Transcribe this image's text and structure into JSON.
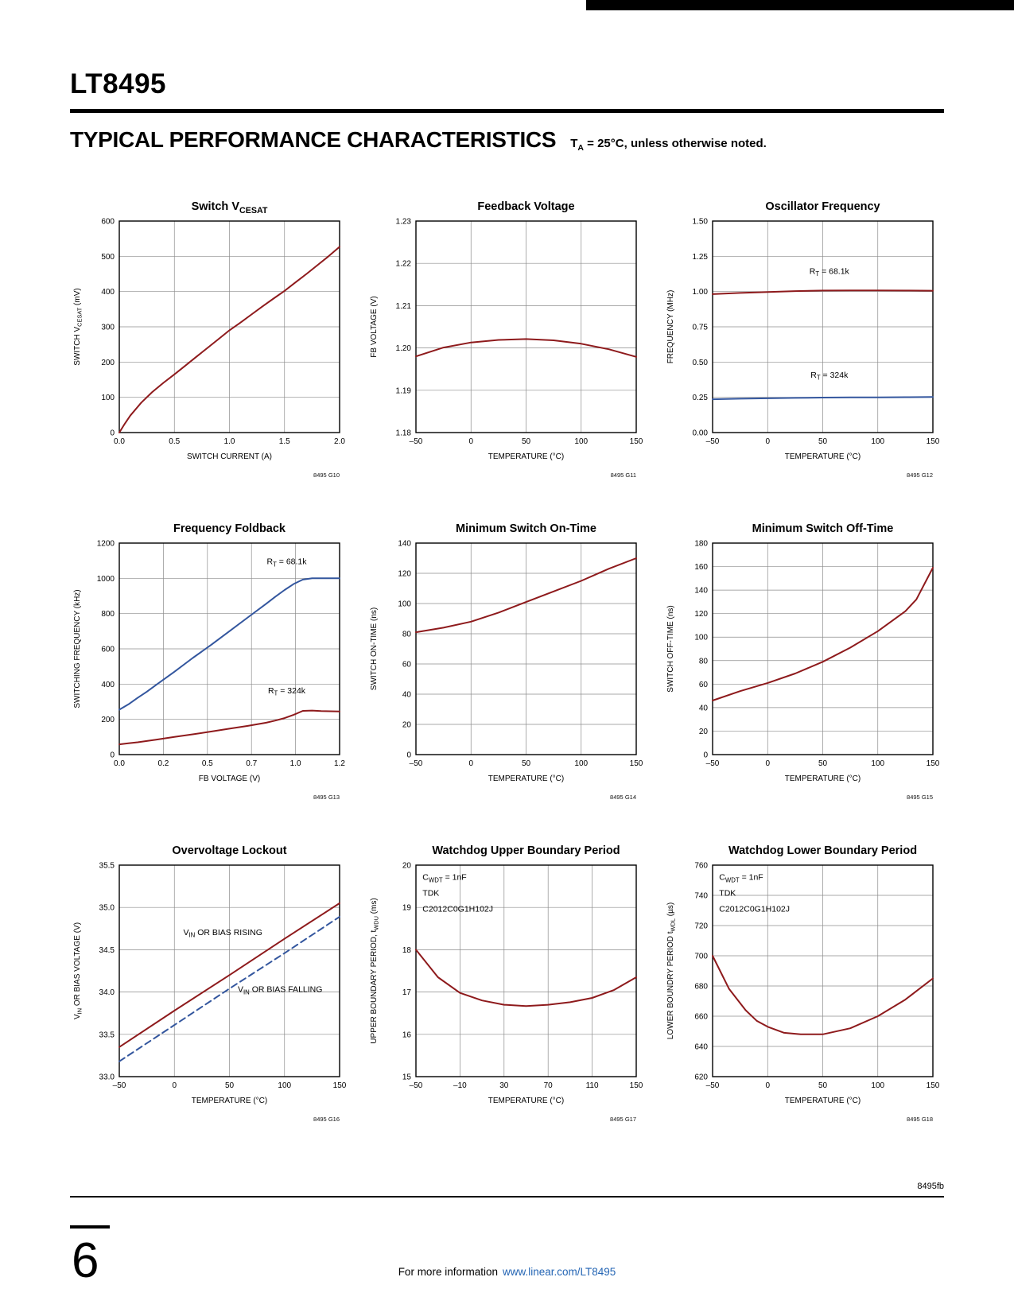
{
  "page": {
    "part_number": "LT8495",
    "section_title": "TYPICAL PERFORMANCE CHARACTERISTICS",
    "section_note": "T_{A} = 25°C, unless otherwise noted.",
    "doc_code": "8495fb",
    "page_number": "6",
    "footer_prefix": "For more information",
    "footer_link": "www.linear.com/LT8495"
  },
  "colors": {
    "red": "#8E1A1C",
    "blue": "#33569E",
    "grid": "#8C8C8C",
    "frame": "#000000",
    "link": "#2465B4"
  },
  "chart_data": [
    {
      "type": "line",
      "title": "Switch V_{CESAT}",
      "xlabel": "SWITCH CURRENT (A)",
      "ylabel": "SWITCH V_{CESAT} (mV)",
      "xlim": [
        0,
        2
      ],
      "ylim": [
        0,
        600
      ],
      "xticks": {
        "values": [
          0,
          0.5,
          1,
          1.5,
          2
        ],
        "labels": [
          "0.0",
          "0.5",
          "1.0",
          "1.5",
          "2.0"
        ]
      },
      "yticks": {
        "values": [
          0,
          100,
          200,
          300,
          400,
          500,
          600
        ],
        "labels": [
          "0",
          "100",
          "200",
          "300",
          "400",
          "500",
          "600"
        ]
      },
      "tag": "8495 G10",
      "series": [
        {
          "name": "vcesat",
          "color": "red",
          "style": "solid",
          "x": [
            0,
            0.05,
            0.1,
            0.2,
            0.3,
            0.4,
            0.5,
            0.6,
            0.7,
            0.8,
            0.9,
            1.0,
            1.1,
            1.2,
            1.3,
            1.4,
            1.5,
            1.6,
            1.7,
            1.8,
            1.9,
            2.0
          ],
          "y": [
            0,
            25,
            48,
            85,
            115,
            141,
            165,
            190,
            215,
            240,
            265,
            290,
            312,
            335,
            358,
            380,
            402,
            426,
            450,
            475,
            500,
            527
          ]
        }
      ]
    },
    {
      "type": "line",
      "title": "Feedback Voltage",
      "xlabel": "TEMPERATURE (°C)",
      "ylabel": "FB VOLTAGE (V)",
      "xlim": [
        -50,
        150
      ],
      "ylim": [
        1.18,
        1.23
      ],
      "xticks": {
        "values": [
          -50,
          0,
          50,
          100,
          150
        ],
        "labels": [
          "–50",
          "0",
          "50",
          "100",
          "150"
        ]
      },
      "yticks": {
        "values": [
          1.18,
          1.19,
          1.2,
          1.21,
          1.22,
          1.23
        ],
        "labels": [
          "1.18",
          "1.19",
          "1.20",
          "1.21",
          "1.22",
          "1.23"
        ]
      },
      "tag": "8495 G11",
      "series": [
        {
          "name": "fb-voltage",
          "color": "red",
          "style": "solid",
          "x": [
            -50,
            -25,
            0,
            25,
            50,
            75,
            100,
            125,
            150
          ],
          "y": [
            1.198,
            1.2001,
            1.2013,
            1.2019,
            1.2021,
            1.2018,
            1.201,
            1.1997,
            1.1979
          ]
        }
      ]
    },
    {
      "type": "line",
      "title": "Oscillator Frequency",
      "xlabel": "TEMPERATURE (°C)",
      "ylabel": "FREQUENCY (MHz)",
      "xlim": [
        -50,
        150
      ],
      "ylim": [
        0,
        1.5
      ],
      "xticks": {
        "values": [
          -50,
          0,
          50,
          100,
          150
        ],
        "labels": [
          "–50",
          "0",
          "50",
          "100",
          "150"
        ]
      },
      "yticks": {
        "values": [
          0,
          0.25,
          0.5,
          0.75,
          1,
          1.25,
          1.5
        ],
        "labels": [
          "0.00",
          "0.25",
          "0.50",
          "0.75",
          "1.00",
          "1.25",
          "1.50"
        ]
      },
      "tag": "8495 G12",
      "series": [
        {
          "name": "rt-68k",
          "color": "red",
          "style": "solid",
          "x": [
            -50,
            -25,
            0,
            25,
            50,
            75,
            100,
            125,
            150
          ],
          "y": [
            0.982,
            0.99,
            0.997,
            1.003,
            1.007,
            1.008,
            1.008,
            1.007,
            1.006
          ]
        },
        {
          "name": "rt-324k",
          "color": "blue",
          "style": "solid",
          "x": [
            -50,
            -25,
            0,
            25,
            50,
            75,
            100,
            125,
            150
          ],
          "y": [
            0.236,
            0.24,
            0.243,
            0.246,
            0.248,
            0.249,
            0.25,
            0.251,
            0.252
          ]
        }
      ],
      "annotations": [
        {
          "text": "R_{T} = 68.1k",
          "fx": 0.53,
          "fy": 0.25
        },
        {
          "text": "R_{T} = 324k",
          "fx": 0.53,
          "fy": 0.74
        }
      ]
    },
    {
      "type": "line",
      "title": "Frequency Foldback",
      "xlabel": "FB VOLTAGE (V)",
      "ylabel": "SWITCHING FREQUENCY (kHz)",
      "xlim": [
        0,
        1.2
      ],
      "ylim": [
        0,
        1200
      ],
      "xticks": {
        "values": [
          0,
          0.24,
          0.48,
          0.72,
          0.96,
          1.2
        ],
        "labels": [
          "0.0",
          "0.2",
          "0.5",
          "0.7",
          "1.0",
          "1.2"
        ]
      },
      "yticks": {
        "values": [
          0,
          200,
          400,
          600,
          800,
          1000,
          1200
        ],
        "labels": [
          "0",
          "200",
          "400",
          "600",
          "800",
          "1000",
          "1200"
        ]
      },
      "tag": "8495 G13",
      "series": [
        {
          "name": "rt-68k",
          "color": "blue",
          "style": "solid",
          "x": [
            0,
            0.05,
            0.1,
            0.15,
            0.2,
            0.3,
            0.4,
            0.5,
            0.6,
            0.7,
            0.8,
            0.85,
            0.9,
            0.95,
            1.0,
            1.05,
            1.1,
            1.2
          ],
          "y": [
            255,
            285,
            322,
            357,
            395,
            470,
            548,
            622,
            700,
            778,
            856,
            896,
            934,
            968,
            993,
            1000,
            1000,
            1000
          ]
        },
        {
          "name": "rt-324k",
          "color": "red",
          "style": "solid",
          "x": [
            0,
            0.05,
            0.1,
            0.15,
            0.2,
            0.3,
            0.4,
            0.5,
            0.6,
            0.7,
            0.8,
            0.85,
            0.9,
            0.95,
            1.0,
            1.05,
            1.1,
            1.2
          ],
          "y": [
            58,
            64,
            70,
            77,
            85,
            100,
            115,
            131,
            147,
            163,
            181,
            193,
            207,
            226,
            248,
            250,
            247,
            245
          ]
        }
      ],
      "annotations": [
        {
          "text": "R_{T} = 68.1k",
          "fx": 0.76,
          "fy": 0.1
        },
        {
          "text": "R_{T} = 324k",
          "fx": 0.76,
          "fy": 0.71
        }
      ]
    },
    {
      "type": "line",
      "title": "Minimum Switch On-Time",
      "xlabel": "TEMPERATURE (°C)",
      "ylabel": "SWITCH ON-TIME (ns)",
      "xlim": [
        -50,
        150
      ],
      "ylim": [
        0,
        140
      ],
      "xticks": {
        "values": [
          -50,
          0,
          50,
          100,
          150
        ],
        "labels": [
          "–50",
          "0",
          "50",
          "100",
          "150"
        ]
      },
      "yticks": {
        "values": [
          0,
          20,
          40,
          60,
          80,
          100,
          120,
          140
        ],
        "labels": [
          "0",
          "20",
          "40",
          "60",
          "80",
          "100",
          "120",
          "140"
        ]
      },
      "tag": "8495 G14",
      "series": [
        {
          "name": "on-time",
          "color": "red",
          "style": "solid",
          "x": [
            -50,
            -25,
            0,
            25,
            50,
            75,
            100,
            125,
            150
          ],
          "y": [
            81,
            84,
            88,
            94,
            101,
            108,
            115,
            123,
            130
          ]
        }
      ]
    },
    {
      "type": "line",
      "title": "Minimum Switch Off-Time",
      "xlabel": "TEMPERATURE (°C)",
      "ylabel": "SWITCH OFF-TIME (ns)",
      "xlim": [
        -50,
        150
      ],
      "ylim": [
        0,
        180
      ],
      "xticks": {
        "values": [
          -50,
          0,
          50,
          100,
          150
        ],
        "labels": [
          "–50",
          "0",
          "50",
          "100",
          "150"
        ]
      },
      "yticks": {
        "values": [
          0,
          20,
          40,
          60,
          80,
          100,
          120,
          140,
          160,
          180
        ],
        "labels": [
          "0",
          "20",
          "40",
          "60",
          "80",
          "100",
          "120",
          "140",
          "160",
          "180"
        ]
      },
      "tag": "8495 G15",
      "series": [
        {
          "name": "off-time",
          "color": "red",
          "style": "solid",
          "x": [
            -50,
            -25,
            0,
            25,
            50,
            75,
            100,
            125,
            135,
            150
          ],
          "y": [
            46,
            54,
            61,
            69,
            79,
            91,
            105,
            122,
            132,
            159
          ]
        }
      ]
    },
    {
      "type": "line",
      "title": "Overvoltage Lockout",
      "xlabel": "TEMPERATURE (°C)",
      "ylabel": "V_{IN} OR BIAS VOLTAGE (V)",
      "xlim": [
        -50,
        150
      ],
      "ylim": [
        33,
        35.5
      ],
      "xticks": {
        "values": [
          -50,
          0,
          50,
          100,
          150
        ],
        "labels": [
          "–50",
          "0",
          "50",
          "100",
          "150"
        ]
      },
      "yticks": {
        "values": [
          33,
          33.5,
          34,
          34.5,
          35,
          35.5
        ],
        "labels": [
          "33.0",
          "33.5",
          "34.0",
          "34.5",
          "35.0",
          "35.5"
        ]
      },
      "tag": "8495 G16",
      "series": [
        {
          "name": "rising",
          "color": "red",
          "style": "solid",
          "x": [
            -50,
            0,
            50,
            100,
            150
          ],
          "y": [
            33.35,
            33.78,
            34.2,
            34.63,
            35.05
          ]
        },
        {
          "name": "falling",
          "color": "blue",
          "style": "dashed",
          "x": [
            -50,
            0,
            50,
            100,
            150
          ],
          "y": [
            33.18,
            33.61,
            34.04,
            34.46,
            34.89
          ]
        }
      ],
      "annotations": [
        {
          "text": "V_{IN} OR BIAS RISING",
          "fx": 0.47,
          "fy": 0.33
        },
        {
          "text": "V_{IN} OR BIAS FALLING",
          "fx": 0.73,
          "fy": 0.6
        }
      ]
    },
    {
      "type": "line",
      "title": "Watchdog Upper Boundary Period",
      "xlabel": "TEMPERATURE (°C)",
      "ylabel": "UPPER BOUNDARY PERIOD, t_{WDU} (ms)",
      "xlim": [
        -50,
        150
      ],
      "ylim": [
        15,
        20
      ],
      "xticks": {
        "values": [
          -50,
          -10,
          30,
          70,
          110,
          150
        ],
        "labels": [
          "–50",
          "–10",
          "30",
          "70",
          "110",
          "150"
        ]
      },
      "yticks": {
        "values": [
          15,
          16,
          17,
          18,
          19,
          20
        ],
        "labels": [
          "15",
          "16",
          "17",
          "18",
          "19",
          "20"
        ]
      },
      "tag": "8495 G17",
      "series": [
        {
          "name": "twdu",
          "color": "red",
          "style": "solid",
          "x": [
            -50,
            -30,
            -10,
            10,
            30,
            50,
            70,
            90,
            110,
            130,
            150
          ],
          "y": [
            18.0,
            17.35,
            16.98,
            16.8,
            16.7,
            16.67,
            16.7,
            16.76,
            16.86,
            17.05,
            17.35
          ]
        }
      ],
      "annotations": [
        {
          "text": "C_{WDT} = 1nF",
          "fx": 0.03,
          "fy": 0.07,
          "anchor": "start"
        },
        {
          "text": "TDK",
          "fx": 0.03,
          "fy": 0.145,
          "anchor": "start"
        },
        {
          "text": "C2012C0G1H102J",
          "fx": 0.03,
          "fy": 0.22,
          "anchor": "start"
        }
      ]
    },
    {
      "type": "line",
      "title": "Watchdog Lower Boundary Period",
      "xlabel": "TEMPERATURE (°C)",
      "ylabel": "LOWER BOUNDRY PERIOD t_{WDL} (µs)",
      "xlim": [
        -50,
        150
      ],
      "ylim": [
        620,
        760
      ],
      "xticks": {
        "values": [
          -50,
          0,
          50,
          100,
          150
        ],
        "labels": [
          "–50",
          "0",
          "50",
          "100",
          "150"
        ]
      },
      "yticks": {
        "values": [
          620,
          640,
          660,
          680,
          700,
          720,
          740,
          760
        ],
        "labels": [
          "620",
          "640",
          "660",
          "680",
          "700",
          "720",
          "740",
          "760"
        ]
      },
      "tag": "8495 G18",
      "series": [
        {
          "name": "twdl",
          "color": "red",
          "style": "solid",
          "x": [
            -50,
            -35,
            -20,
            -10,
            0,
            15,
            30,
            50,
            75,
            100,
            125,
            150
          ],
          "y": [
            700,
            678,
            664,
            657,
            653,
            649,
            648,
            648,
            652,
            660,
            671,
            685
          ]
        }
      ],
      "annotations": [
        {
          "text": "C_{WDT} = 1nF",
          "fx": 0.03,
          "fy": 0.07,
          "anchor": "start"
        },
        {
          "text": "TDK",
          "fx": 0.03,
          "fy": 0.145,
          "anchor": "start"
        },
        {
          "text": "C2012C0G1H102J",
          "fx": 0.03,
          "fy": 0.22,
          "anchor": "start"
        }
      ]
    }
  ]
}
